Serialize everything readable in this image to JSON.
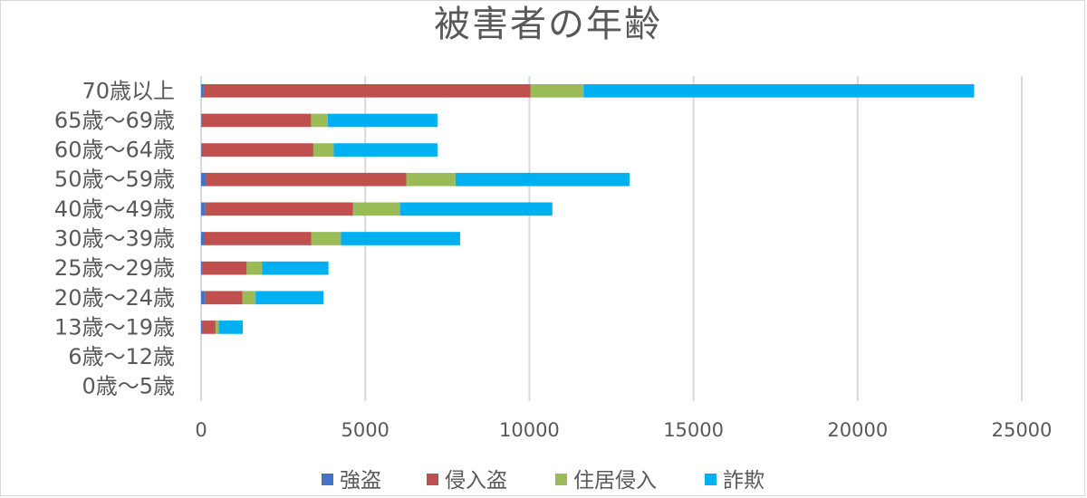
{
  "chart_data": {
    "type": "bar",
    "orientation": "horizontal",
    "stacked": true,
    "title": "被害者の年齢",
    "categories": [
      "70歳以上",
      "65歳～69歳",
      "60歳～64歳",
      "50歳～59歳",
      "40歳～49歳",
      "30歳～39歳",
      "25歳～29歳",
      "20歳～24歳",
      "13歳～19歳",
      "6歳～12歳",
      "0歳～5歳"
    ],
    "series": [
      {
        "name": "強盗",
        "color": "#4472c4",
        "values": [
          80,
          20,
          20,
          150,
          130,
          110,
          40,
          130,
          40,
          0,
          0
        ]
      },
      {
        "name": "侵入盗",
        "color": "#c0504d",
        "values": [
          9950,
          3330,
          3400,
          6100,
          4500,
          3250,
          1350,
          1130,
          400,
          0,
          0
        ]
      },
      {
        "name": "住居侵入",
        "color": "#9bbb59",
        "values": [
          1620,
          510,
          620,
          1500,
          1430,
          900,
          470,
          400,
          100,
          0,
          0
        ]
      },
      {
        "name": "詐欺",
        "color": "#00b0f0",
        "values": [
          11900,
          3340,
          3160,
          5300,
          4640,
          3630,
          2020,
          2070,
          730,
          0,
          0
        ]
      }
    ],
    "xlim": [
      0,
      25000
    ],
    "xticks": [
      0,
      5000,
      10000,
      15000,
      20000,
      25000
    ],
    "grid": true,
    "legend_position": "bottom"
  }
}
